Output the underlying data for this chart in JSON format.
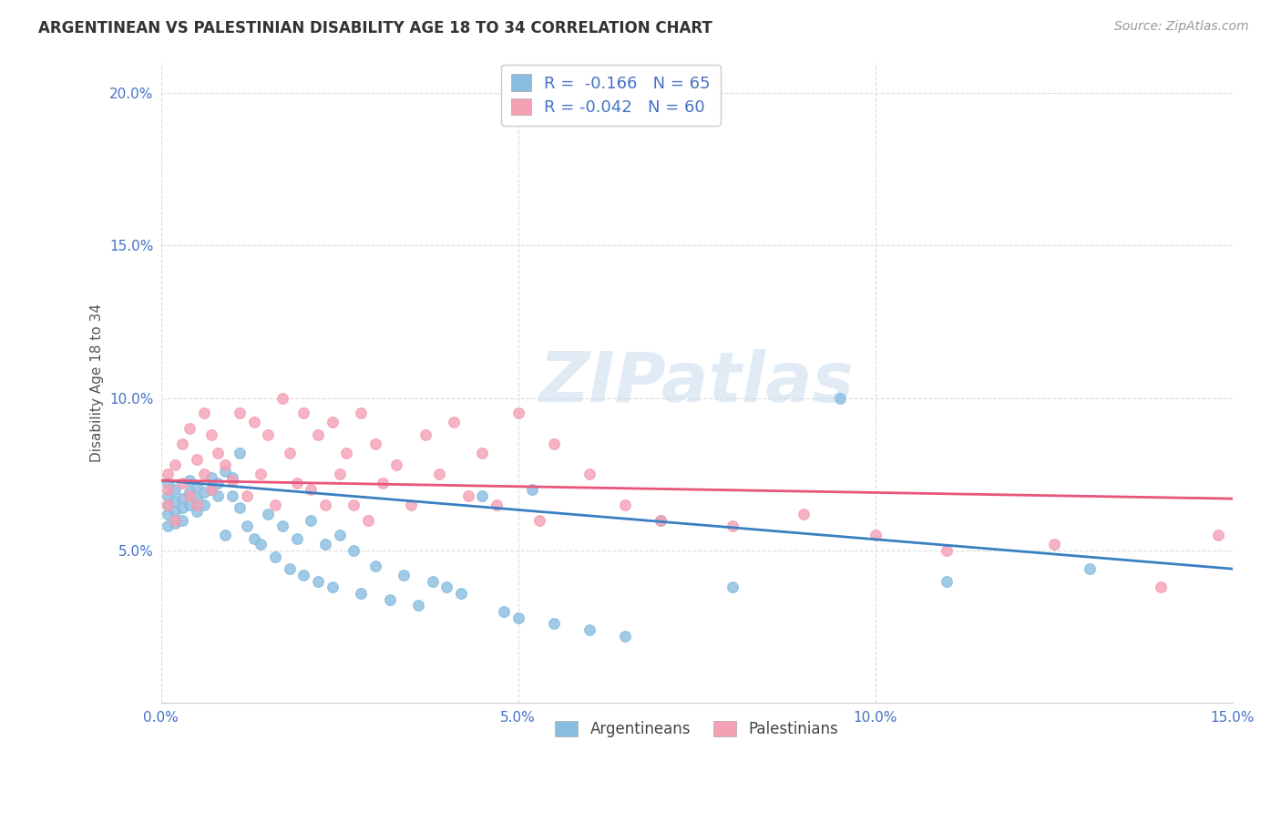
{
  "title": "ARGENTINEAN VS PALESTINIAN DISABILITY AGE 18 TO 34 CORRELATION CHART",
  "source": "Source: ZipAtlas.com",
  "ylabel": "Disability Age 18 to 34",
  "xlim": [
    0.0,
    0.15
  ],
  "ylim": [
    0.0,
    0.21
  ],
  "argentinean_color": "#89bde0",
  "palestinian_color": "#f4a0b5",
  "line_arg_color": "#3a7fc1",
  "line_pal_color": "#e8557a",
  "argentinean_R": -0.166,
  "argentinean_N": 65,
  "palestinian_R": -0.042,
  "palestinian_N": 60,
  "legend_label_arg": "Argentineans",
  "legend_label_pal": "Palestinians",
  "watermark": "ZIPatlas",
  "background_color": "#ffffff",
  "grid_color": "#dddddd",
  "argentinean_x": [
    0.001,
    0.001,
    0.001,
    0.001,
    0.001,
    0.002,
    0.002,
    0.002,
    0.002,
    0.003,
    0.003,
    0.003,
    0.004,
    0.004,
    0.004,
    0.005,
    0.005,
    0.005,
    0.006,
    0.006,
    0.007,
    0.007,
    0.008,
    0.008,
    0.009,
    0.009,
    0.01,
    0.01,
    0.011,
    0.011,
    0.012,
    0.013,
    0.014,
    0.015,
    0.016,
    0.017,
    0.018,
    0.019,
    0.02,
    0.021,
    0.022,
    0.023,
    0.024,
    0.025,
    0.027,
    0.028,
    0.03,
    0.032,
    0.034,
    0.036,
    0.038,
    0.04,
    0.042,
    0.045,
    0.048,
    0.05,
    0.052,
    0.055,
    0.06,
    0.065,
    0.07,
    0.08,
    0.095,
    0.11,
    0.13
  ],
  "argentinean_y": [
    0.072,
    0.068,
    0.065,
    0.062,
    0.058,
    0.07,
    0.066,
    0.063,
    0.059,
    0.067,
    0.064,
    0.06,
    0.073,
    0.069,
    0.065,
    0.071,
    0.067,
    0.063,
    0.069,
    0.065,
    0.074,
    0.07,
    0.072,
    0.068,
    0.076,
    0.055,
    0.074,
    0.068,
    0.082,
    0.064,
    0.058,
    0.054,
    0.052,
    0.062,
    0.048,
    0.058,
    0.044,
    0.054,
    0.042,
    0.06,
    0.04,
    0.052,
    0.038,
    0.055,
    0.05,
    0.036,
    0.045,
    0.034,
    0.042,
    0.032,
    0.04,
    0.038,
    0.036,
    0.068,
    0.03,
    0.028,
    0.07,
    0.026,
    0.024,
    0.022,
    0.06,
    0.038,
    0.1,
    0.04,
    0.044
  ],
  "palestinian_x": [
    0.001,
    0.001,
    0.001,
    0.002,
    0.002,
    0.003,
    0.003,
    0.004,
    0.004,
    0.005,
    0.005,
    0.006,
    0.006,
    0.007,
    0.007,
    0.008,
    0.009,
    0.01,
    0.011,
    0.012,
    0.013,
    0.014,
    0.015,
    0.016,
    0.017,
    0.018,
    0.019,
    0.02,
    0.021,
    0.022,
    0.023,
    0.024,
    0.025,
    0.026,
    0.027,
    0.028,
    0.029,
    0.03,
    0.031,
    0.033,
    0.035,
    0.037,
    0.039,
    0.041,
    0.043,
    0.045,
    0.047,
    0.05,
    0.053,
    0.055,
    0.06,
    0.065,
    0.07,
    0.08,
    0.09,
    0.1,
    0.11,
    0.125,
    0.14,
    0.148
  ],
  "palestinian_y": [
    0.075,
    0.07,
    0.065,
    0.078,
    0.06,
    0.085,
    0.072,
    0.09,
    0.068,
    0.08,
    0.065,
    0.075,
    0.095,
    0.07,
    0.088,
    0.082,
    0.078,
    0.073,
    0.095,
    0.068,
    0.092,
    0.075,
    0.088,
    0.065,
    0.1,
    0.082,
    0.072,
    0.095,
    0.07,
    0.088,
    0.065,
    0.092,
    0.075,
    0.082,
    0.065,
    0.095,
    0.06,
    0.085,
    0.072,
    0.078,
    0.065,
    0.088,
    0.075,
    0.092,
    0.068,
    0.082,
    0.065,
    0.095,
    0.06,
    0.085,
    0.075,
    0.065,
    0.06,
    0.058,
    0.062,
    0.055,
    0.05,
    0.052,
    0.038,
    0.055
  ]
}
